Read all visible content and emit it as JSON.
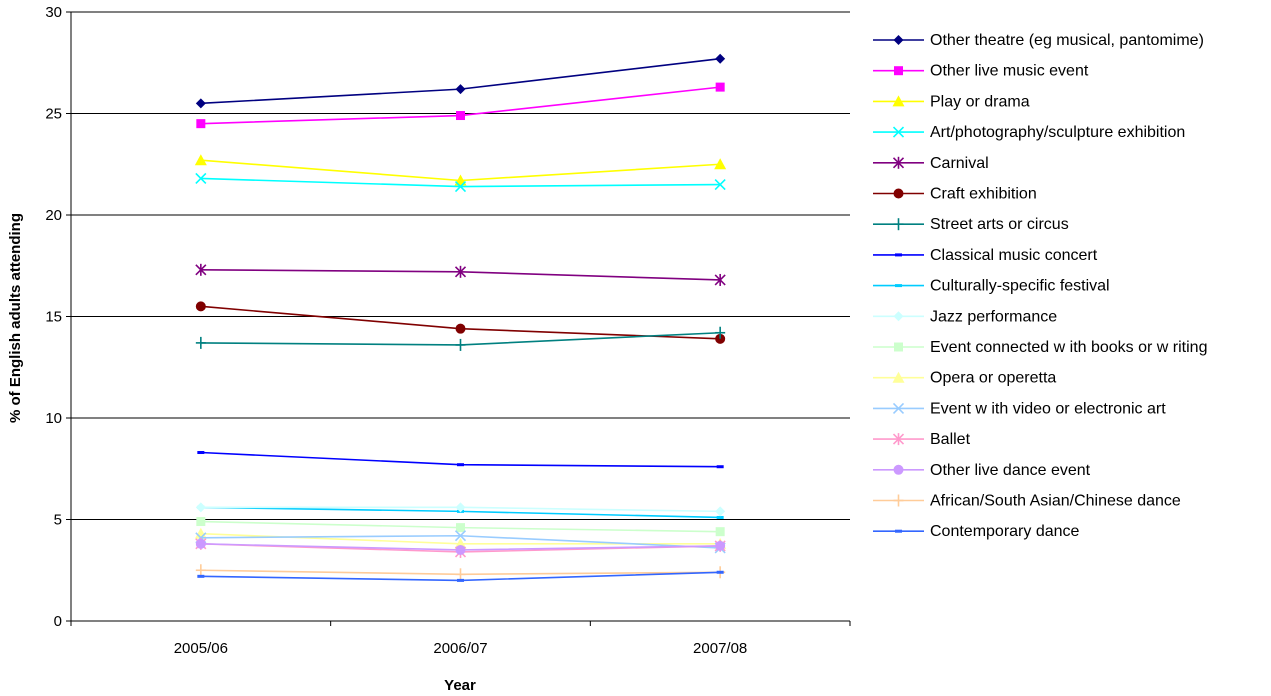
{
  "chart_data": {
    "type": "line",
    "title": "",
    "xlabel": "Year",
    "ylabel": "% of English adults attending",
    "categories": [
      "2005/06",
      "2006/07",
      "2007/08"
    ],
    "ylim": [
      0,
      30
    ],
    "yticks": [
      0,
      5,
      10,
      15,
      20,
      25,
      30
    ],
    "grid": "horizontal",
    "legend_position": "right",
    "series": [
      {
        "name": "Other theatre (eg musical, pantomime)",
        "values": [
          25.5,
          26.2,
          27.7
        ],
        "color": "#000080",
        "marker": "diamond"
      },
      {
        "name": "Other live music event",
        "values": [
          24.5,
          24.9,
          26.3
        ],
        "color": "#ff00ff",
        "marker": "square"
      },
      {
        "name": "Play or drama",
        "values": [
          22.7,
          21.7,
          22.5
        ],
        "color": "#ffff00",
        "marker": "triangle"
      },
      {
        "name": "Art/photography/sculpture exhibition",
        "values": [
          21.8,
          21.4,
          21.5
        ],
        "color": "#00ffff",
        "marker": "x"
      },
      {
        "name": "Carnival",
        "values": [
          17.3,
          17.2,
          16.8
        ],
        "color": "#800080",
        "marker": "star"
      },
      {
        "name": "Craft exhibition",
        "values": [
          15.5,
          14.4,
          13.9
        ],
        "color": "#800000",
        "marker": "circle"
      },
      {
        "name": "Street arts or circus",
        "values": [
          13.7,
          13.6,
          14.2
        ],
        "color": "#008080",
        "marker": "plus"
      },
      {
        "name": "Classical music concert",
        "values": [
          8.3,
          7.7,
          7.6
        ],
        "color": "#0000ff",
        "marker": "dash"
      },
      {
        "name": "Culturally-specific festival",
        "values": [
          5.6,
          5.4,
          5.1
        ],
        "color": "#00ccff",
        "marker": "dash"
      },
      {
        "name": "Jazz performance",
        "values": [
          5.6,
          5.6,
          5.4
        ],
        "color": "#ccffff",
        "marker": "diamond"
      },
      {
        "name": "Event connected w ith books or w riting",
        "values": [
          4.9,
          4.6,
          4.4
        ],
        "color": "#ccffcc",
        "marker": "square"
      },
      {
        "name": "Opera or operetta",
        "values": [
          4.3,
          3.8,
          3.8
        ],
        "color": "#ffff99",
        "marker": "triangle"
      },
      {
        "name": "Event w ith video or electronic art",
        "values": [
          4.1,
          4.2,
          3.6
        ],
        "color": "#99ccff",
        "marker": "x"
      },
      {
        "name": "Ballet",
        "values": [
          3.8,
          3.4,
          3.7
        ],
        "color": "#ff99cc",
        "marker": "star"
      },
      {
        "name": "Other live dance event",
        "values": [
          3.8,
          3.5,
          3.7
        ],
        "color": "#cc99ff",
        "marker": "circle"
      },
      {
        "name": "African/South Asian/Chinese dance",
        "values": [
          2.5,
          2.3,
          2.4
        ],
        "color": "#ffcc99",
        "marker": "plus"
      },
      {
        "name": "Contemporary dance",
        "values": [
          2.2,
          2.0,
          2.4
        ],
        "color": "#3366ff",
        "marker": "dash"
      }
    ]
  }
}
